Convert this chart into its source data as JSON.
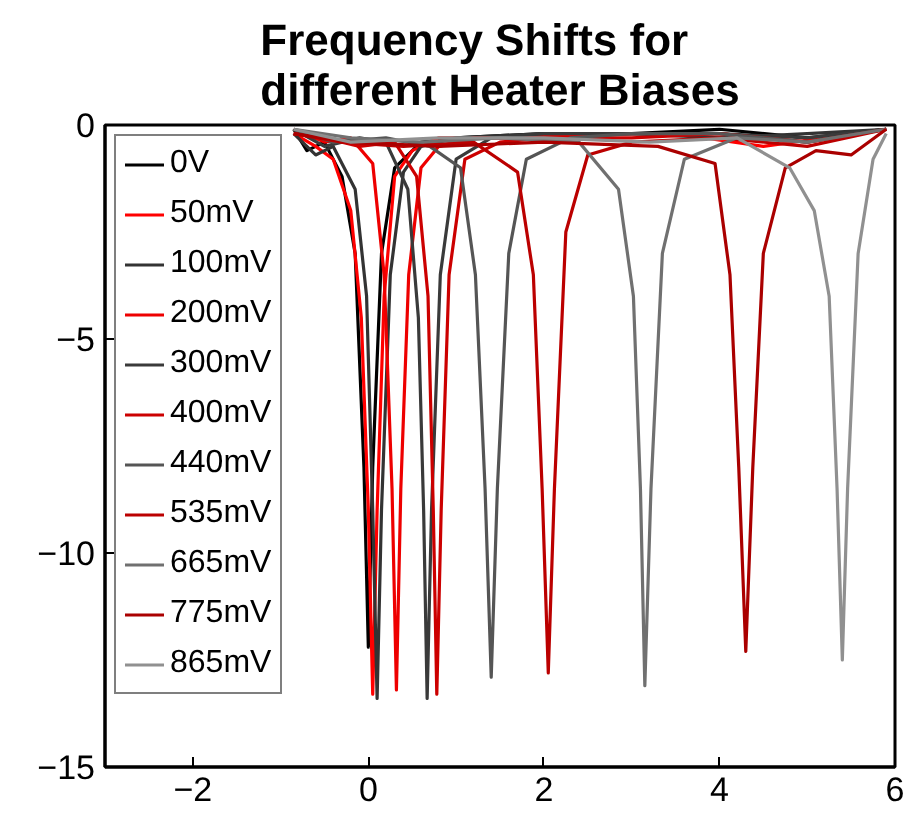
{
  "chart_data": {
    "type": "line",
    "title": "Frequency Shifts for\ndifferent Heater Biases",
    "xlim": [
      -3,
      6
    ],
    "ylim": [
      -15,
      0
    ],
    "xticks": [
      -2,
      0,
      2,
      4,
      6
    ],
    "yticks": [
      0,
      -5,
      -10,
      -15
    ],
    "grid": false,
    "legend": "top left",
    "line_style": "solid",
    "marker": "none",
    "series": [
      {
        "name": "0V",
        "color": "#000000",
        "x": [
          -0.85,
          -0.7,
          -0.5,
          -0.3,
          -0.15,
          -0.05,
          0.0,
          0.05,
          0.15,
          0.3,
          0.6,
          1.0,
          2.0,
          3.0,
          4.0,
          5.0,
          5.9
        ],
        "values": [
          -0.1,
          -0.6,
          -0.4,
          -1.2,
          -3,
          -8,
          -12.2,
          -8,
          -3,
          -1,
          -0.4,
          -0.3,
          -0.2,
          -0.2,
          -0.1,
          -0.3,
          -0.1
        ]
      },
      {
        "name": "50mV",
        "color": "#ff0000",
        "x": [
          -0.85,
          -0.6,
          -0.4,
          -0.2,
          -0.08,
          0.0,
          0.05,
          0.1,
          0.18,
          0.3,
          0.5,
          0.8,
          1.5,
          2.5,
          3.5,
          4.5,
          5.9
        ],
        "values": [
          -0.2,
          -0.5,
          -0.8,
          -2,
          -4.5,
          -9,
          -13.3,
          -9,
          -4,
          -1.2,
          -0.6,
          -0.3,
          -0.3,
          -0.2,
          -0.2,
          -0.5,
          -0.1
        ]
      },
      {
        "name": "100mV",
        "color": "#333333",
        "x": [
          -0.85,
          -0.6,
          -0.4,
          -0.15,
          -0.02,
          0.05,
          0.1,
          0.15,
          0.25,
          0.4,
          0.6,
          1.0,
          2.0,
          3.0,
          4.0,
          5.0,
          5.9
        ],
        "values": [
          -0.2,
          -0.7,
          -0.5,
          -1.5,
          -4,
          -9,
          -13.4,
          -9,
          -3.5,
          -1.1,
          -0.5,
          -0.3,
          -0.2,
          -0.2,
          -0.3,
          -0.2,
          -0.1
        ]
      },
      {
        "name": "200mV",
        "color": "#ee0000",
        "x": [
          -0.85,
          -0.5,
          -0.2,
          0.05,
          0.18,
          0.27,
          0.32,
          0.37,
          0.46,
          0.6,
          0.8,
          1.2,
          2.0,
          3.0,
          4.0,
          5.0,
          5.9
        ],
        "values": [
          -0.1,
          -0.4,
          -0.3,
          -0.9,
          -3.5,
          -8.5,
          -13.2,
          -8.5,
          -3.5,
          -1,
          -0.5,
          -0.3,
          -0.3,
          -0.2,
          -0.2,
          -0.4,
          -0.1
        ]
      },
      {
        "name": "300mV",
        "color": "#3a3a3a",
        "x": [
          -0.85,
          -0.5,
          -0.1,
          0.2,
          0.45,
          0.57,
          0.63,
          0.67,
          0.72,
          0.82,
          1.0,
          1.4,
          2.0,
          3.0,
          4.0,
          5.0,
          5.9
        ],
        "values": [
          -0.1,
          -0.5,
          -0.3,
          -0.4,
          -1.5,
          -4.5,
          -9,
          -13.4,
          -9,
          -3.5,
          -0.8,
          -0.3,
          -0.2,
          -0.2,
          -0.2,
          -0.3,
          -0.1
        ]
      },
      {
        "name": "400mV",
        "color": "#cc0000",
        "x": [
          -0.85,
          -0.5,
          -0.1,
          0.3,
          0.55,
          0.68,
          0.74,
          0.78,
          0.83,
          0.92,
          1.1,
          1.5,
          2.0,
          3.0,
          4.0,
          5.0,
          5.9
        ],
        "values": [
          -0.2,
          -0.3,
          -0.5,
          -0.4,
          -1.2,
          -4,
          -9,
          -13.3,
          -9,
          -3.5,
          -0.8,
          -0.4,
          -0.3,
          -0.3,
          -0.2,
          -0.4,
          -0.1
        ]
      },
      {
        "name": "440mV",
        "color": "#555555",
        "x": [
          -0.85,
          -0.4,
          0.2,
          0.7,
          1.05,
          1.22,
          1.33,
          1.4,
          1.47,
          1.6,
          1.8,
          2.3,
          3.0,
          4.0,
          5.0,
          5.9
        ],
        "values": [
          -0.1,
          -0.4,
          -0.3,
          -0.5,
          -1,
          -3.5,
          -8.5,
          -12.9,
          -8.5,
          -3,
          -0.8,
          -0.3,
          -0.2,
          -0.2,
          -0.4,
          -0.1
        ]
      },
      {
        "name": "535mV",
        "color": "#bb0000",
        "x": [
          -0.85,
          -0.3,
          0.4,
          1.2,
          1.7,
          1.88,
          1.98,
          2.05,
          2.12,
          2.25,
          2.5,
          3.0,
          4.0,
          5.0,
          5.9
        ],
        "values": [
          -0.2,
          -0.4,
          -0.5,
          -0.4,
          -1.1,
          -3.5,
          -8.5,
          -12.8,
          -8.5,
          -2.5,
          -0.7,
          -0.4,
          -0.3,
          -0.5,
          -0.1
        ]
      },
      {
        "name": "665mV",
        "color": "#707070",
        "x": [
          -0.85,
          -0.2,
          0.6,
          1.5,
          2.4,
          2.85,
          3.02,
          3.1,
          3.15,
          3.22,
          3.35,
          3.6,
          4.2,
          5.0,
          5.9
        ],
        "values": [
          -0.1,
          -0.3,
          -0.4,
          -0.3,
          -0.4,
          -1.5,
          -4,
          -8.5,
          -13.1,
          -8.5,
          -3,
          -0.8,
          -0.3,
          -0.4,
          -0.1
        ]
      },
      {
        "name": "775mV",
        "color": "#aa0000",
        "x": [
          -0.85,
          -0.2,
          0.8,
          2.0,
          3.3,
          3.95,
          4.12,
          4.22,
          4.3,
          4.38,
          4.5,
          4.75,
          5.1,
          5.5,
          5.9
        ],
        "values": [
          -0.2,
          -0.4,
          -0.5,
          -0.4,
          -0.5,
          -0.9,
          -3.5,
          -8,
          -12.3,
          -8,
          -3,
          -1,
          -0.6,
          -0.7,
          -0.1
        ]
      },
      {
        "name": "865mV",
        "color": "#909090",
        "x": [
          -0.85,
          -0.2,
          0.8,
          2.0,
          3.2,
          4.2,
          4.8,
          5.08,
          5.25,
          5.34,
          5.4,
          5.46,
          5.58,
          5.75,
          5.9
        ],
        "values": [
          -0.1,
          -0.4,
          -0.3,
          -0.3,
          -0.4,
          -0.3,
          -1,
          -2,
          -4,
          -8.5,
          -12.5,
          -8.5,
          -3,
          -0.8,
          -0.2
        ]
      }
    ]
  }
}
